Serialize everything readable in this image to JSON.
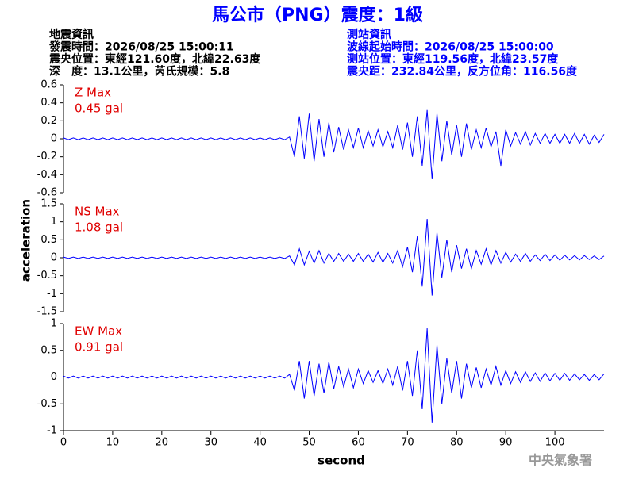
{
  "chart_data": {
    "type": "line",
    "title": "馬公市（PNG）震度：1級",
    "info_left": [
      "地震資訊",
      "發震時間：2026/08/25 15:00:11",
      "震央位置：東經121.60度，北緯22.63度",
      "深　度：13.1公里，芮氏規模：5.8"
    ],
    "info_right": [
      "測站資訊",
      "波線起始時間：2026/08/25 15:00:00",
      "測站位置：東經119.56度，北緯23.57度",
      "震央距：232.84公里，反方位角：116.56度"
    ],
    "credit": "中央氣象署",
    "xlabel": "second",
    "ylabel": "acceleration",
    "color": "#0000ff",
    "xlim": [
      0,
      110
    ],
    "xticks": [
      0,
      10,
      20,
      30,
      40,
      50,
      60,
      70,
      80,
      90,
      100
    ],
    "x": [
      0,
      1,
      2,
      3,
      4,
      5,
      6,
      7,
      8,
      9,
      10,
      11,
      12,
      13,
      14,
      15,
      16,
      17,
      18,
      19,
      20,
      21,
      22,
      23,
      24,
      25,
      26,
      27,
      28,
      29,
      30,
      31,
      32,
      33,
      34,
      35,
      36,
      37,
      38,
      39,
      40,
      41,
      42,
      43,
      44,
      45,
      46,
      47,
      48,
      49,
      50,
      51,
      52,
      53,
      54,
      55,
      56,
      57,
      58,
      59,
      60,
      61,
      62,
      63,
      64,
      65,
      66,
      67,
      68,
      69,
      70,
      71,
      72,
      73,
      74,
      75,
      76,
      77,
      78,
      79,
      80,
      81,
      82,
      83,
      84,
      85,
      86,
      87,
      88,
      89,
      90,
      91,
      92,
      93,
      94,
      95,
      96,
      97,
      98,
      99,
      100,
      101,
      102,
      103,
      104,
      105,
      106,
      107,
      108,
      109,
      110
    ],
    "series": [
      {
        "name": "Z Max",
        "annotation": "0.45 gal",
        "ylim": [
          -0.6,
          0.6
        ],
        "yticks": [
          0.6,
          0.4,
          0.2,
          0,
          -0.2,
          -0.4,
          -0.6
        ],
        "values": [
          0.01,
          -0.01,
          0.01,
          -0.01,
          0.01,
          -0.01,
          0.01,
          -0.01,
          0.01,
          -0.01,
          0.01,
          -0.01,
          0.01,
          -0.01,
          0.01,
          -0.01,
          0.01,
          -0.01,
          0.01,
          -0.01,
          0.01,
          -0.01,
          0.01,
          -0.01,
          0.01,
          -0.01,
          0.01,
          -0.01,
          0.01,
          -0.01,
          0.01,
          -0.01,
          0.01,
          -0.01,
          0.01,
          -0.01,
          0.01,
          -0.01,
          0.01,
          -0.01,
          0.01,
          -0.01,
          0.01,
          -0.01,
          0.01,
          -0.01,
          0.02,
          -0.2,
          0.25,
          -0.22,
          0.28,
          -0.25,
          0.22,
          -0.2,
          0.18,
          -0.15,
          0.13,
          -0.12,
          0.1,
          -0.1,
          0.12,
          -0.1,
          0.09,
          -0.08,
          0.1,
          -0.09,
          0.08,
          -0.1,
          0.15,
          -0.12,
          0.18,
          -0.2,
          0.25,
          -0.3,
          0.32,
          -0.45,
          0.28,
          -0.25,
          0.2,
          -0.18,
          0.15,
          -0.2,
          0.17,
          -0.12,
          0.1,
          -0.1,
          0.12,
          -0.09,
          0.08,
          -0.3,
          0.1,
          -0.08,
          0.07,
          -0.06,
          0.08,
          -0.07,
          0.06,
          -0.05,
          0.06,
          -0.05,
          0.05,
          -0.05,
          0.05,
          -0.05,
          0.06,
          -0.05,
          0.05,
          -0.06,
          0.04,
          -0.04,
          0.05
        ]
      },
      {
        "name": "NS Max",
        "annotation": "1.08 gal",
        "ylim": [
          -1.5,
          1.5
        ],
        "yticks": [
          1.5,
          1,
          0.5,
          0,
          -0.5,
          -1,
          -1.5
        ],
        "values": [
          0.02,
          -0.02,
          0.02,
          -0.02,
          0.02,
          -0.02,
          0.02,
          -0.02,
          0.02,
          -0.02,
          0.02,
          -0.02,
          0.02,
          -0.02,
          0.02,
          -0.02,
          0.02,
          -0.02,
          0.02,
          -0.02,
          0.02,
          -0.02,
          0.02,
          -0.02,
          0.02,
          -0.02,
          0.02,
          -0.02,
          0.02,
          -0.02,
          0.02,
          -0.02,
          0.02,
          -0.02,
          0.02,
          -0.02,
          0.02,
          -0.02,
          0.02,
          -0.02,
          0.02,
          -0.02,
          0.02,
          -0.02,
          0.02,
          -0.02,
          0.05,
          -0.2,
          0.25,
          -0.2,
          0.18,
          -0.15,
          0.2,
          -0.15,
          0.12,
          -0.1,
          0.12,
          -0.1,
          0.1,
          -0.1,
          0.12,
          -0.1,
          0.1,
          -0.12,
          0.15,
          -0.13,
          0.12,
          -0.15,
          0.2,
          -0.25,
          0.3,
          -0.4,
          0.6,
          -0.8,
          1.08,
          -1.05,
          0.7,
          -0.55,
          0.5,
          -0.4,
          0.35,
          -0.3,
          0.25,
          -0.3,
          0.2,
          -0.18,
          0.25,
          -0.2,
          0.2,
          -0.15,
          0.15,
          -0.12,
          0.1,
          -0.1,
          0.12,
          -0.1,
          0.08,
          -0.08,
          0.1,
          -0.08,
          0.08,
          -0.07,
          0.07,
          -0.06,
          0.06,
          -0.06,
          0.06,
          -0.05,
          0.05,
          -0.05,
          0.05
        ]
      },
      {
        "name": "EW Max",
        "annotation": "0.91 gal",
        "ylim": [
          -1,
          1
        ],
        "yticks": [
          1,
          0.5,
          0,
          -0.5,
          -1
        ],
        "values": [
          0.02,
          -0.02,
          0.02,
          -0.02,
          0.02,
          -0.02,
          0.02,
          -0.02,
          0.02,
          -0.02,
          0.02,
          -0.02,
          0.02,
          -0.02,
          0.02,
          -0.02,
          0.02,
          -0.02,
          0.02,
          -0.02,
          0.02,
          -0.02,
          0.02,
          -0.02,
          0.02,
          -0.02,
          0.02,
          -0.02,
          0.02,
          -0.02,
          0.02,
          -0.02,
          0.02,
          -0.02,
          0.02,
          -0.02,
          0.02,
          -0.02,
          0.02,
          -0.02,
          0.02,
          -0.02,
          0.02,
          -0.02,
          0.02,
          -0.02,
          0.05,
          -0.25,
          0.3,
          -0.4,
          0.3,
          -0.35,
          0.25,
          -0.3,
          0.28,
          -0.22,
          0.2,
          -0.18,
          0.15,
          -0.2,
          0.15,
          -0.12,
          0.12,
          -0.1,
          0.12,
          -0.12,
          0.15,
          -0.15,
          0.2,
          -0.25,
          0.3,
          -0.35,
          0.5,
          -0.6,
          0.91,
          -0.85,
          0.6,
          -0.5,
          0.35,
          -0.3,
          0.3,
          -0.4,
          0.25,
          -0.2,
          0.18,
          -0.2,
          0.15,
          -0.15,
          0.2,
          -0.15,
          0.12,
          -0.12,
          0.1,
          -0.1,
          0.1,
          -0.08,
          0.08,
          -0.08,
          0.08,
          -0.07,
          0.07,
          -0.06,
          0.07,
          -0.06,
          0.06,
          -0.05,
          0.05,
          -0.06,
          0.05,
          -0.05,
          0.06
        ]
      }
    ]
  }
}
